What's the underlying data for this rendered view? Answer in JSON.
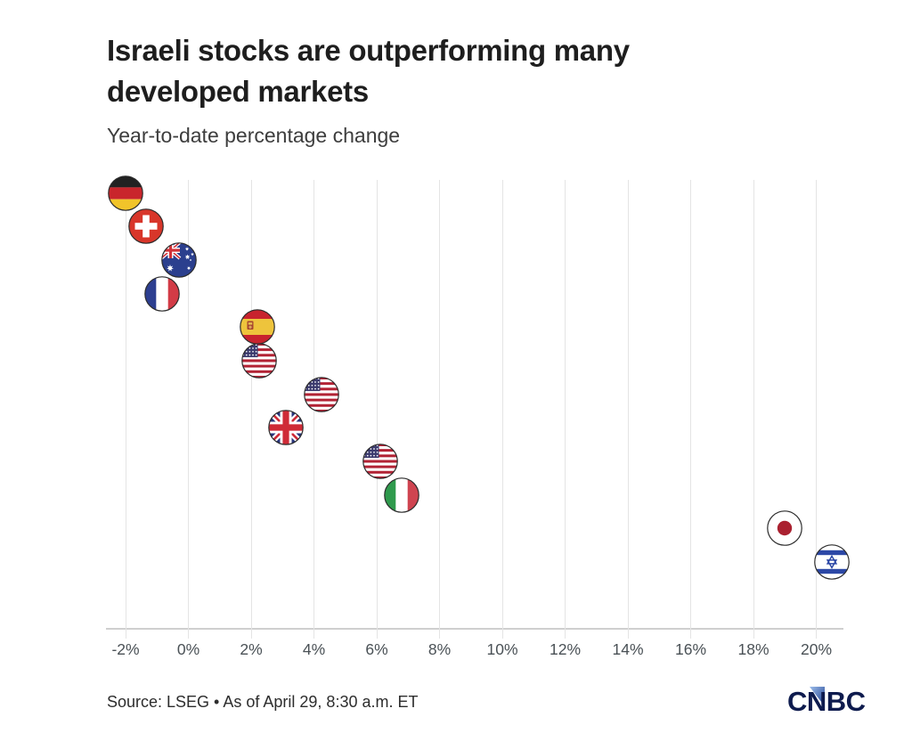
{
  "header": {
    "title_line1": "Israeli stocks are outperforming many",
    "title_line2": "developed markets",
    "subtitle": "Year-to-date percentage change"
  },
  "footer": {
    "source": "Source: LSEG • As of April 29, 8:30 a.m. ET",
    "logo_text": "CNBC"
  },
  "palette": {
    "background": "#ffffff",
    "title_color": "#1e1e1e",
    "subtitle_color": "#3d3d3d",
    "gridline_color": "#e4e4e4",
    "axis_line_color": "#cfcfcf",
    "tick_label_color": "#4a5156",
    "source_color": "#2d2d2d",
    "cnbc_navy": "#0e1b4e",
    "cnbc_blue": "#2f5fb4"
  },
  "chart_data": {
    "type": "scatter",
    "title": "Israeli stocks are outperforming many developed markets",
    "subtitle": "Year-to-date percentage change",
    "xlabel": "",
    "ylabel": "",
    "x_unit": "%",
    "xlim": [
      -3.3,
      21.4
    ],
    "xticks": [
      -2,
      0,
      2,
      4,
      6,
      8,
      10,
      12,
      14,
      16,
      18,
      20
    ],
    "xtick_labels": [
      "-2%",
      "0%",
      "2%",
      "4%",
      "6%",
      "8%",
      "10%",
      "12%",
      "14%",
      "16%",
      "18%",
      "20%"
    ],
    "grid": "vertical-only",
    "legend": "none",
    "marker_style": "circular country flag icons, one per row top-to-bottom",
    "points": [
      {
        "row": 1,
        "country": "Germany",
        "flag": "de",
        "ytd_change_pct": -2.0
      },
      {
        "row": 2,
        "country": "Switzerland",
        "flag": "ch",
        "ytd_change_pct": -1.35
      },
      {
        "row": 3,
        "country": "Australia",
        "flag": "au",
        "ytd_change_pct": -0.3
      },
      {
        "row": 4,
        "country": "France",
        "flag": "fr",
        "ytd_change_pct": -0.85
      },
      {
        "row": 5,
        "country": "Spain",
        "flag": "es",
        "ytd_change_pct": 2.2
      },
      {
        "row": 6,
        "country": "United States",
        "flag": "us",
        "ytd_change_pct": 2.25
      },
      {
        "row": 7,
        "country": "United States",
        "flag": "us",
        "ytd_change_pct": 4.25
      },
      {
        "row": 8,
        "country": "United Kingdom",
        "flag": "gb",
        "ytd_change_pct": 3.1
      },
      {
        "row": 9,
        "country": "United States",
        "flag": "us",
        "ytd_change_pct": 6.1
      },
      {
        "row": 10,
        "country": "Italy",
        "flag": "it",
        "ytd_change_pct": 6.8
      },
      {
        "row": 11,
        "country": "Japan",
        "flag": "jp",
        "ytd_change_pct": 19.0
      },
      {
        "row": 12,
        "country": "Israel",
        "flag": "il",
        "ytd_change_pct": 20.5
      }
    ]
  }
}
